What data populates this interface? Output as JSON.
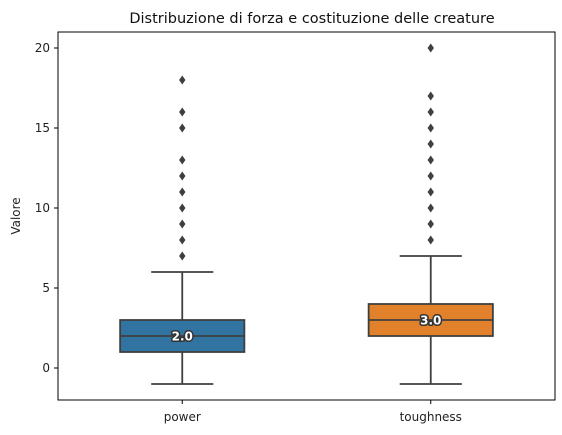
{
  "chart_data": {
    "type": "box",
    "title": "Distribuzione di forza e costituzione delle creature",
    "xlabel": "",
    "ylabel": "Valore",
    "ylim": [
      -2,
      21
    ],
    "yticks": [
      0,
      5,
      10,
      15,
      20
    ],
    "grid": false,
    "categories": [
      "power",
      "toughness"
    ],
    "boxes": [
      {
        "category": "power",
        "color": "#3274a1",
        "whisker_low": -1,
        "q1": 1,
        "median": 2,
        "q3": 3,
        "whisker_high": 6,
        "outliers": [
          7,
          8,
          9,
          10,
          11,
          12,
          13,
          15,
          16,
          18
        ],
        "median_label": "2.0"
      },
      {
        "category": "toughness",
        "color": "#e1812c",
        "whisker_low": -1,
        "q1": 2,
        "median": 3,
        "q3": 4,
        "whisker_high": 7,
        "outliers": [
          8,
          9,
          10,
          11,
          12,
          13,
          14,
          15,
          16,
          17,
          20
        ],
        "median_label": "3.0"
      }
    ]
  }
}
